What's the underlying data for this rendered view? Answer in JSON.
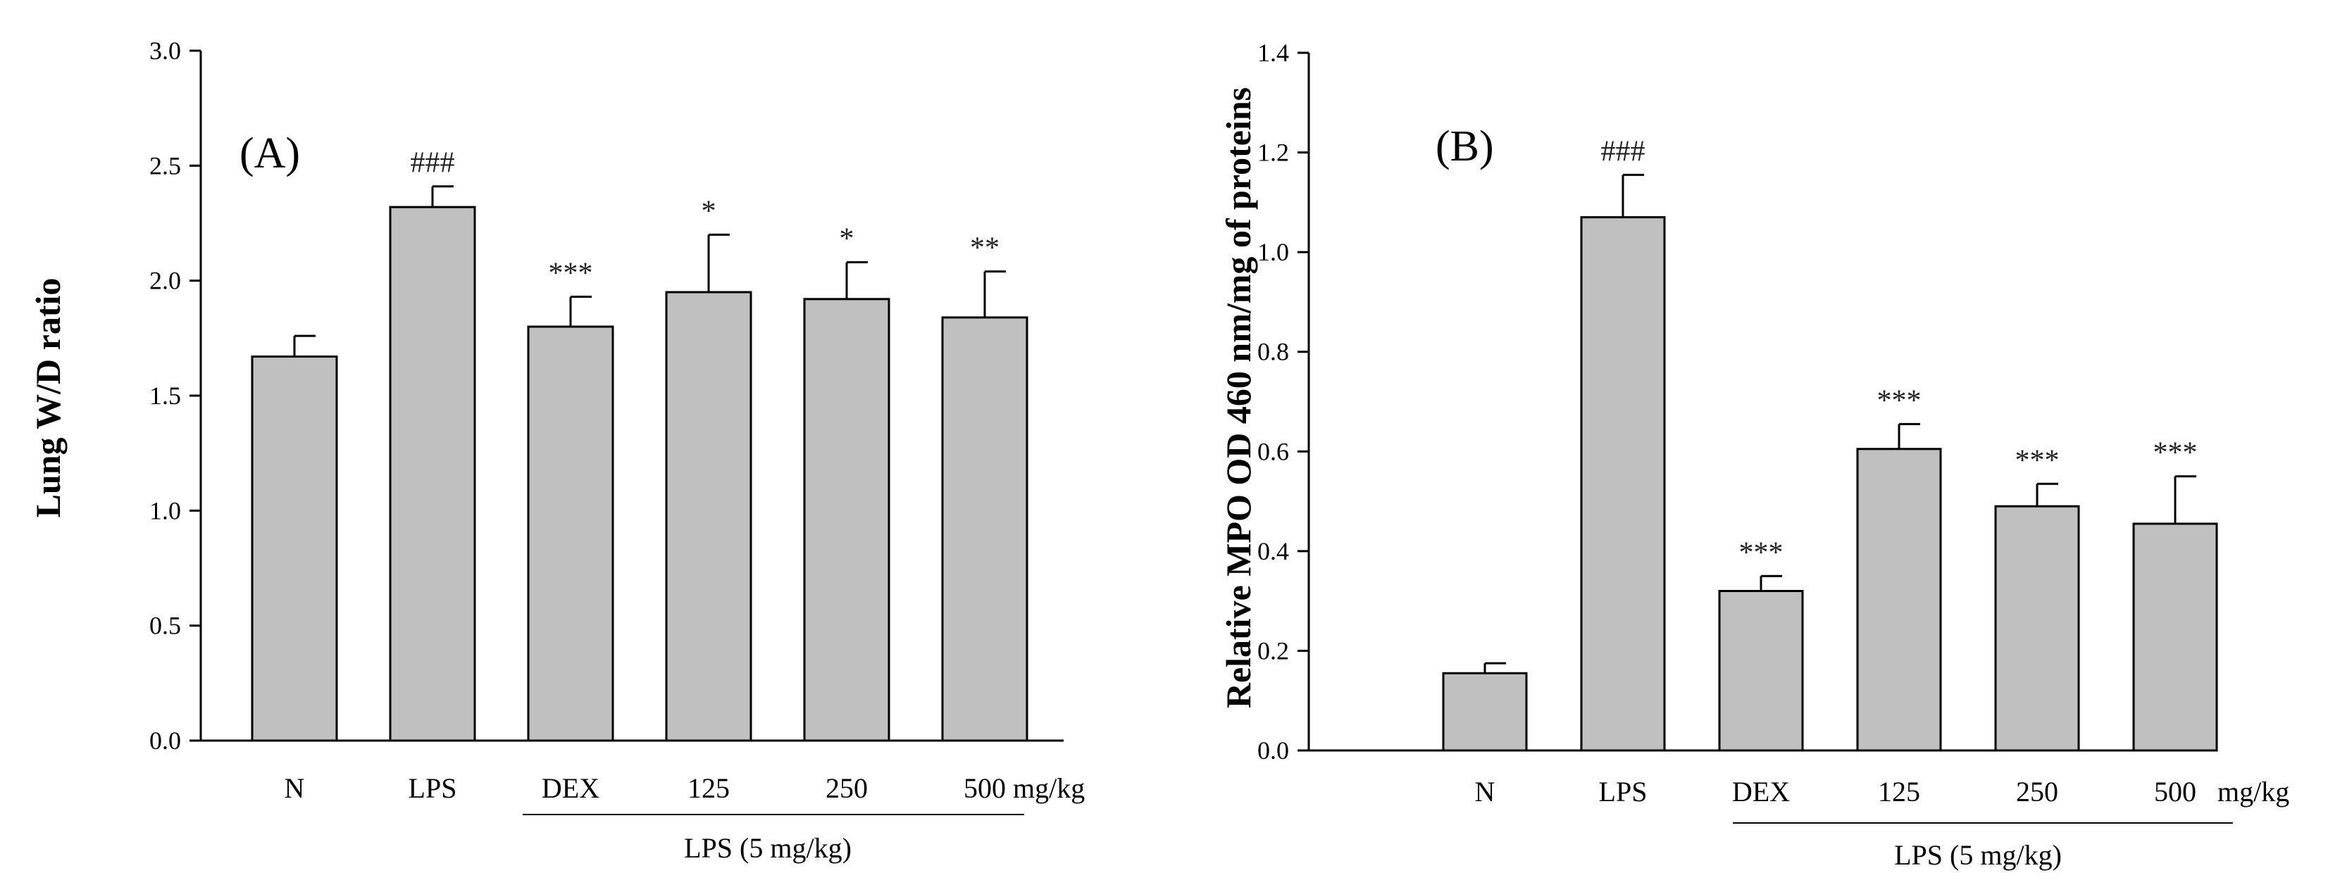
{
  "chart_data": [
    {
      "type": "bar",
      "panel_label": "(A)",
      "ylabel": "Lung W/D ratio",
      "ylim": [
        0,
        3.0
      ],
      "yticks": [
        "0.0",
        "0.5",
        "1.0",
        "1.5",
        "2.0",
        "2.5",
        "3.0"
      ],
      "categories": [
        "N",
        "LPS",
        "DEX",
        "125",
        "250",
        "500"
      ],
      "unit_label": "mg/kg",
      "values": [
        1.67,
        2.32,
        1.8,
        1.95,
        1.92,
        1.84
      ],
      "errors": [
        0.09,
        0.09,
        0.13,
        0.25,
        0.16,
        0.2
      ],
      "significance": [
        "",
        "###",
        "***",
        "*",
        "*",
        "**"
      ],
      "group_label": "LPS (5 mg/kg)"
    },
    {
      "type": "bar",
      "panel_label": "(B)",
      "ylabel": "Relative MPO OD 460 nm/mg of proteins",
      "ylim": [
        0,
        1.4
      ],
      "yticks": [
        "0.0",
        "0.2",
        "0.4",
        "0.6",
        "0.8",
        "1.0",
        "1.2",
        "1.4"
      ],
      "categories": [
        "N",
        "LPS",
        "DEX",
        "125",
        "250",
        "500"
      ],
      "unit_label": "mg/kg",
      "values": [
        0.155,
        1.07,
        0.32,
        0.605,
        0.49,
        0.455
      ],
      "errors": [
        0.02,
        0.085,
        0.03,
        0.05,
        0.045,
        0.095
      ],
      "significance": [
        "",
        "###",
        "***",
        "***",
        "***",
        "***"
      ],
      "group_label": "LPS (5 mg/kg)"
    }
  ]
}
